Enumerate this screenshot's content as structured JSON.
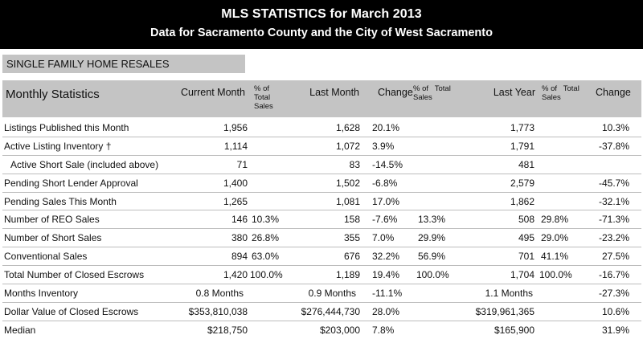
{
  "header": {
    "title": "MLS STATISTICS for March 2013",
    "subtitle": "Data for Sacramento County and the City of West Sacramento"
  },
  "section": {
    "label": "SINGLE FAMILY HOME RESALES"
  },
  "columns": {
    "stat": "Monthly Statistics",
    "current": "Current Month",
    "pct_total_1": "% of\nTotal\nSales",
    "last": "Last Month",
    "change1": "Change",
    "pct_total_2": "% of   Total\nSales",
    "lastyear": "Last Year",
    "pct_total_3": "% of   Total\nSales",
    "change2": "Change"
  },
  "rows": [
    {
      "label": "Listings Published this Month",
      "cur": "1,956",
      "pct1": "",
      "last": "1,628",
      "chg1": "20.1%",
      "pct2": "",
      "ly": "1,773",
      "pct3": "",
      "chg2": "10.3%"
    },
    {
      "label": "Active Listing Inventory †",
      "cur": "1,114",
      "pct1": "",
      "last": "1,072",
      "chg1": "3.9%",
      "pct2": "",
      "ly": "1,791",
      "pct3": "",
      "chg2": "-37.8%"
    },
    {
      "label": "Active Short Sale (included above)",
      "cur": "71",
      "pct1": "",
      "last": "83",
      "chg1": "-14.5%",
      "pct2": "",
      "ly": "481",
      "pct3": "",
      "chg2": ""
    },
    {
      "label": "Pending Short Lender Approval",
      "cur": "1,400",
      "pct1": "",
      "last": "1,502",
      "chg1": "-6.8%",
      "pct2": "",
      "ly": "2,579",
      "pct3": "",
      "chg2": "-45.7%"
    },
    {
      "label": "Pending Sales This Month",
      "cur": "1,265",
      "pct1": "",
      "last": "1,081",
      "chg1": "17.0%",
      "pct2": "",
      "ly": "1,862",
      "pct3": "",
      "chg2": "-32.1%"
    },
    {
      "label": "Number of REO Sales",
      "cur": "146",
      "pct1": "10.3%",
      "last": "158",
      "chg1": "-7.6%",
      "pct2": "13.3%",
      "ly": "508",
      "pct3": "29.8%",
      "chg2": "-71.3%"
    },
    {
      "label": "Number of Short Sales",
      "cur": "380",
      "pct1": "26.8%",
      "last": "355",
      "chg1": "7.0%",
      "pct2": "29.9%",
      "ly": "495",
      "pct3": "29.0%",
      "chg2": "-23.2%"
    },
    {
      "label": "Conventional Sales",
      "cur": "894",
      "pct1": "63.0%",
      "last": "676",
      "chg1": "32.2%",
      "pct2": "56.9%",
      "ly": "701",
      "pct3": "41.1%",
      "chg2": "27.5%"
    },
    {
      "label": "Total Number of Closed Escrows",
      "cur": "1,420",
      "pct1": "100.0%",
      "last": "1,189",
      "chg1": "19.4%",
      "pct2": "100.0%",
      "ly": "1,704",
      "pct3": "100.0%",
      "chg2": "-16.7%"
    },
    {
      "label": "Months Inventory",
      "cur": "0.8 Months",
      "pct1": "",
      "last": "0.9 Months",
      "chg1": "-11.1%",
      "pct2": "",
      "ly": "1.1 Months",
      "pct3": "",
      "chg2": "-27.3%"
    },
    {
      "label": "Dollar Value of Closed Escrows",
      "cur": "$353,810,038",
      "pct1": "",
      "last": "$276,444,730",
      "chg1": "28.0%",
      "pct2": "",
      "ly": "$319,961,365",
      "pct3": "",
      "chg2": "10.6%"
    },
    {
      "label": "Median",
      "cur": "$218,750",
      "pct1": "",
      "last": "$203,000",
      "chg1": "7.8%",
      "pct2": "",
      "ly": "$165,900",
      "pct3": "",
      "chg2": "31.9%"
    }
  ]
}
